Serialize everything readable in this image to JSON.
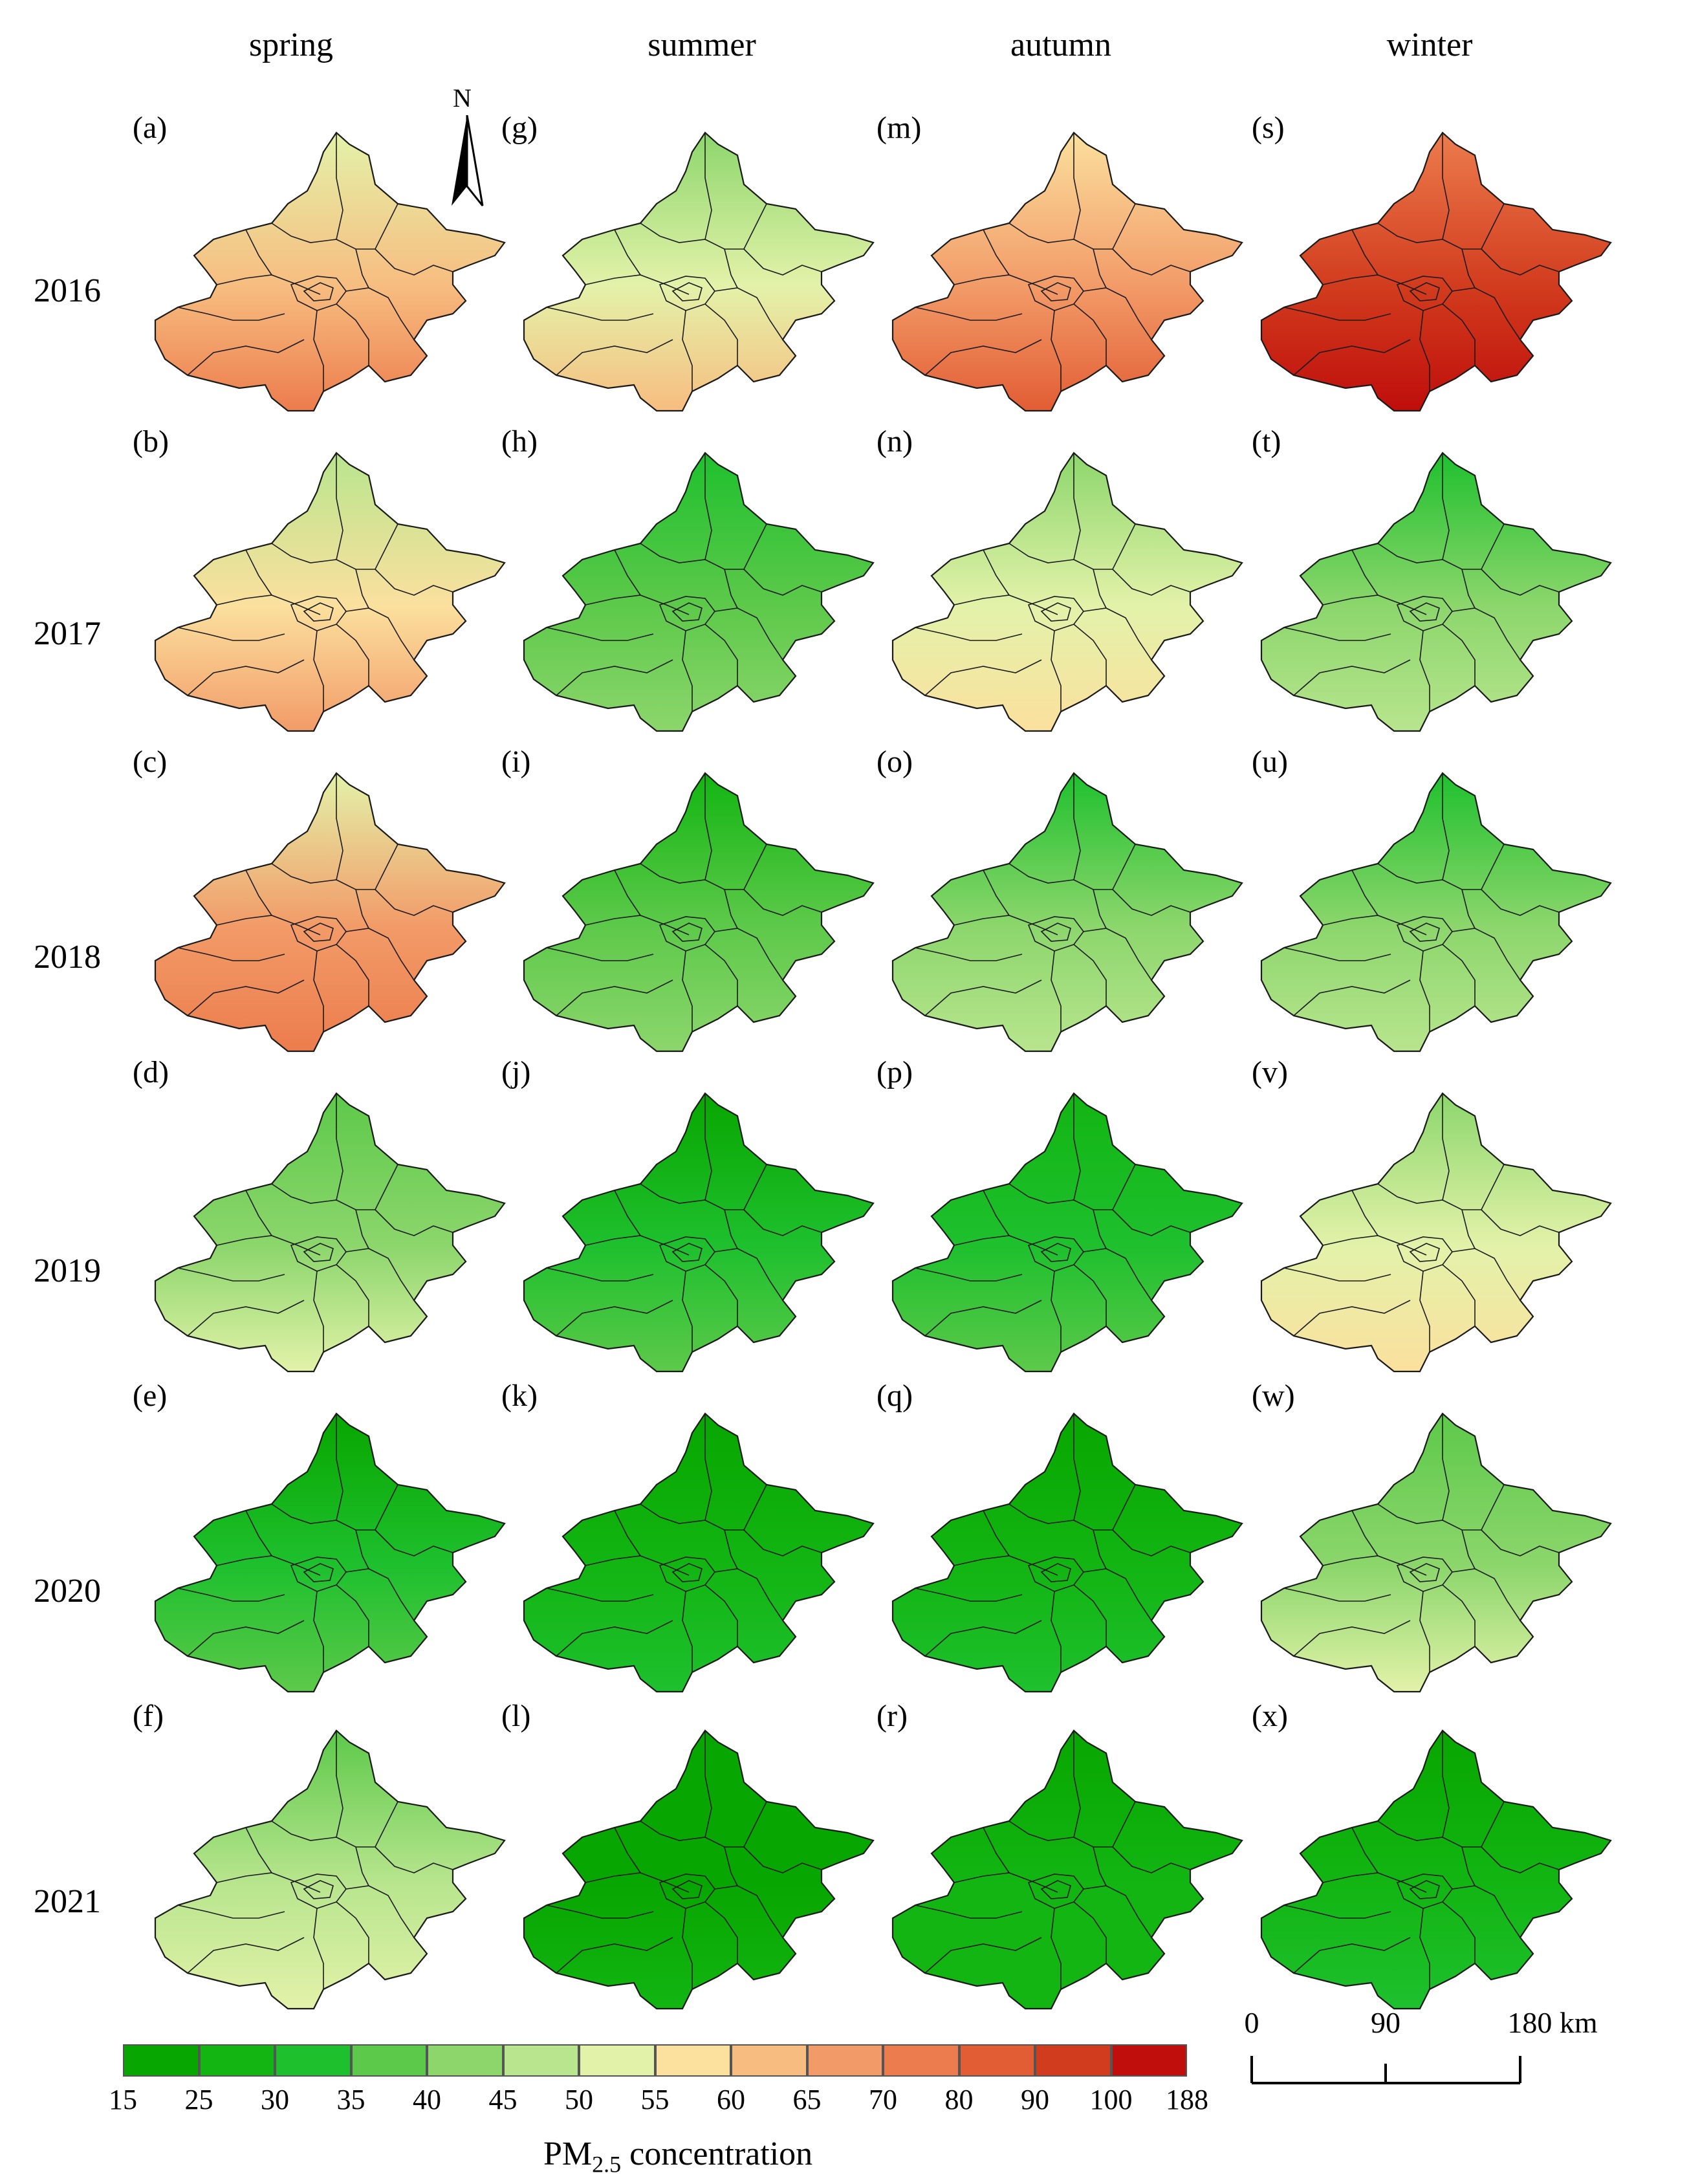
{
  "seasons": [
    "spring",
    "summer",
    "autumn",
    "winter"
  ],
  "years": [
    "2016",
    "2017",
    "2018",
    "2019",
    "2020",
    "2021"
  ],
  "panel_labels": [
    [
      "(a)",
      "(g)",
      "(m)",
      "(s)"
    ],
    [
      "(b)",
      "(h)",
      "(n)",
      "(t)"
    ],
    [
      "(c)",
      "(i)",
      "(o)",
      "(u)"
    ],
    [
      "(d)",
      "(j)",
      "(p)",
      "(v)"
    ],
    [
      "(e)",
      "(k)",
      "(q)",
      "(w)"
    ],
    [
      "(f)",
      "(l)",
      "(r)",
      "(x)"
    ]
  ],
  "north_label": "N",
  "legend": {
    "title_main": "PM",
    "title_sub": "2.5",
    "title_rest": " concentration",
    "ticks": [
      "15",
      "25",
      "30",
      "35",
      "40",
      "45",
      "50",
      "55",
      "60",
      "65",
      "70",
      "80",
      "90",
      "100",
      "188"
    ],
    "colors": [
      "#08a600",
      "#12b512",
      "#1ec02e",
      "#5dc94a",
      "#8cd66c",
      "#b8e58e",
      "#e3f2a9",
      "#fbe09e",
      "#f7bd80",
      "#f29b68",
      "#ec7c4d",
      "#e25d34",
      "#d23c1e",
      "#bf0e0b"
    ]
  },
  "scale_bar": {
    "ticks": [
      "0",
      "90",
      "180 km"
    ]
  },
  "panel_values": [
    [
      62,
      52,
      68,
      90
    ],
    [
      56,
      38,
      50,
      40
    ],
    [
      66,
      36,
      40,
      40
    ],
    [
      43,
      30,
      33,
      50
    ],
    [
      30,
      27,
      28,
      44
    ],
    [
      46,
      22,
      25,
      26
    ]
  ]
}
